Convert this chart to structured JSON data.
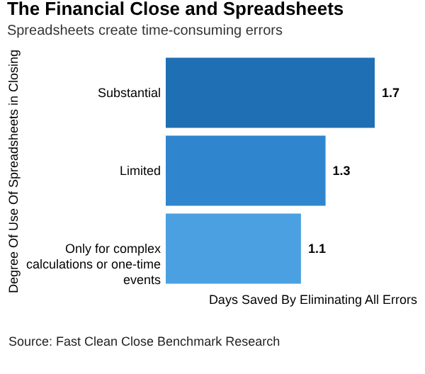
{
  "chart_data": {
    "type": "bar",
    "orientation": "horizontal",
    "title": "The Financial Close and Spreadsheets",
    "subtitle": "Spreadsheets create time-consuming errors",
    "ylabel": "Degree Of Use Of Spreadsheets in Closing",
    "xlabel": "Days Saved By Eliminating All Errors",
    "categories": [
      "Substantial",
      "Limited",
      "Only for complex calculations or one-time events"
    ],
    "values": [
      1.7,
      1.3,
      1.1
    ],
    "colors": [
      "#1f6fb4",
      "#2f86cf",
      "#4aa0e0"
    ],
    "data_labels": true,
    "annotations": [
      "Source: Fast Clean Close Benchmark Research"
    ]
  }
}
